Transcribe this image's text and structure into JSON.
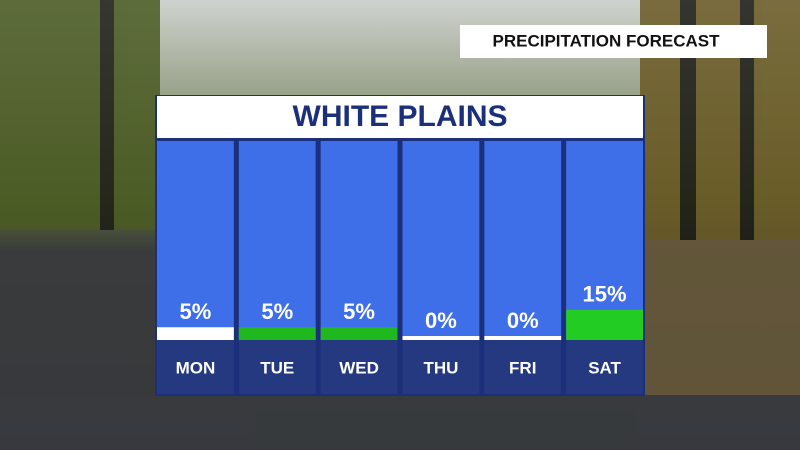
{
  "chart_data": {
    "type": "bar",
    "header": "PRECIPITATION FORECAST",
    "title": "WHITE PLAINS",
    "categories": [
      "MON",
      "TUE",
      "WED",
      "THU",
      "FRI",
      "SAT"
    ],
    "values": [
      5,
      5,
      5,
      0,
      0,
      15
    ],
    "value_labels": [
      "5%",
      "5%",
      "5%",
      "0%",
      "0%",
      "15%"
    ],
    "colors": [
      "#ffffff",
      "#1fb81f",
      "#1fb81f",
      "#ffffff",
      "#ffffff",
      "#22cc22"
    ]
  }
}
